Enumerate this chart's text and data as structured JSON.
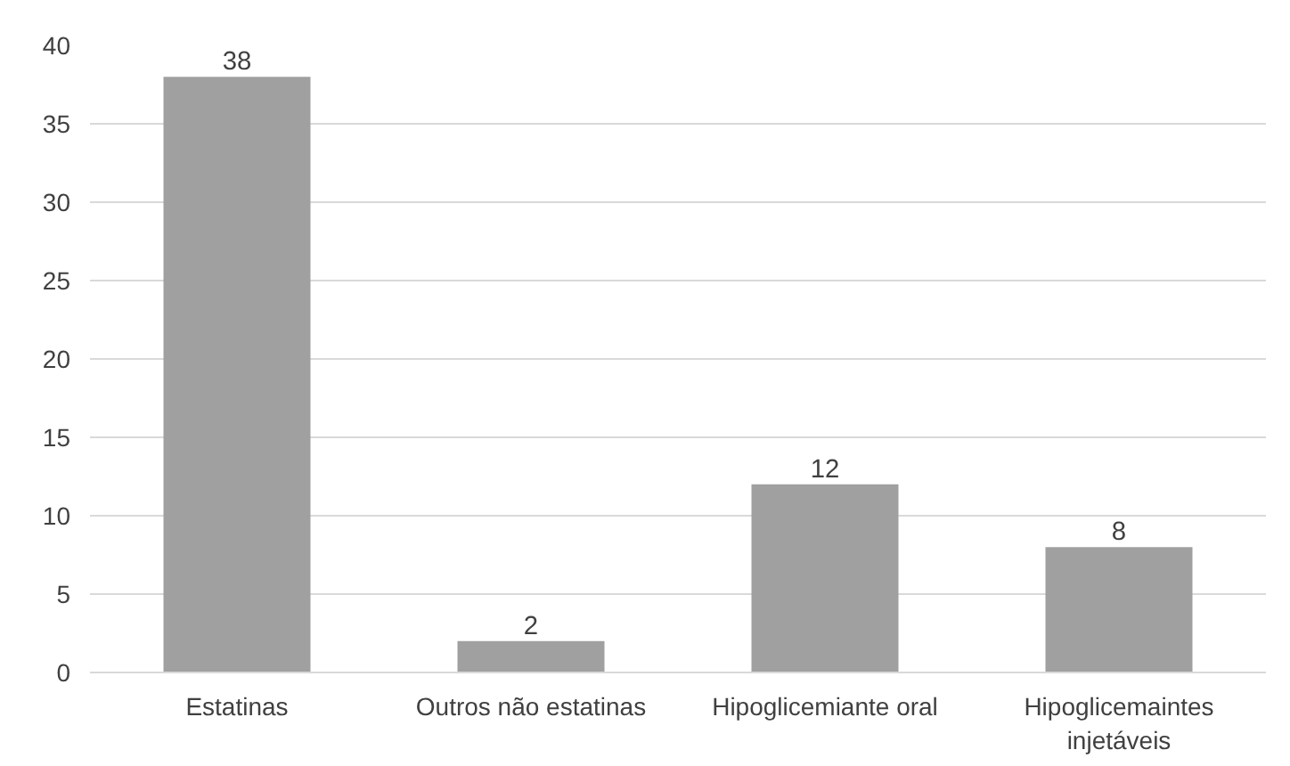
{
  "chart_data": {
    "type": "bar",
    "categories": [
      "Estatinas",
      "Outros não estatinas",
      "Hipoglicemiante oral",
      "Hipoglicemaintes injetáveis"
    ],
    "values": [
      38,
      2,
      12,
      8
    ],
    "color": "#a0a0a0",
    "ylim": [
      0,
      40
    ],
    "yticks": [
      0,
      5,
      10,
      15,
      20,
      25,
      30,
      35,
      40
    ],
    "grid": "y",
    "data_labels": true
  }
}
